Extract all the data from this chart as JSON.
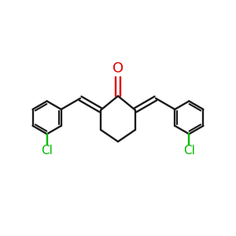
{
  "bg": "#ffffff",
  "bond_color": "#1a1a1a",
  "O_color": "#dd0000",
  "Cl_color": "#00bb00",
  "lw": 1.7,
  "lw_double_inner": 1.4,
  "fs_O": 13,
  "fs_Cl": 11,
  "xlim": [
    -1.5,
    1.5
  ],
  "ylim": [
    -0.85,
    0.85
  ],
  "figsize": [
    3.0,
    3.0
  ],
  "dpi": 100
}
